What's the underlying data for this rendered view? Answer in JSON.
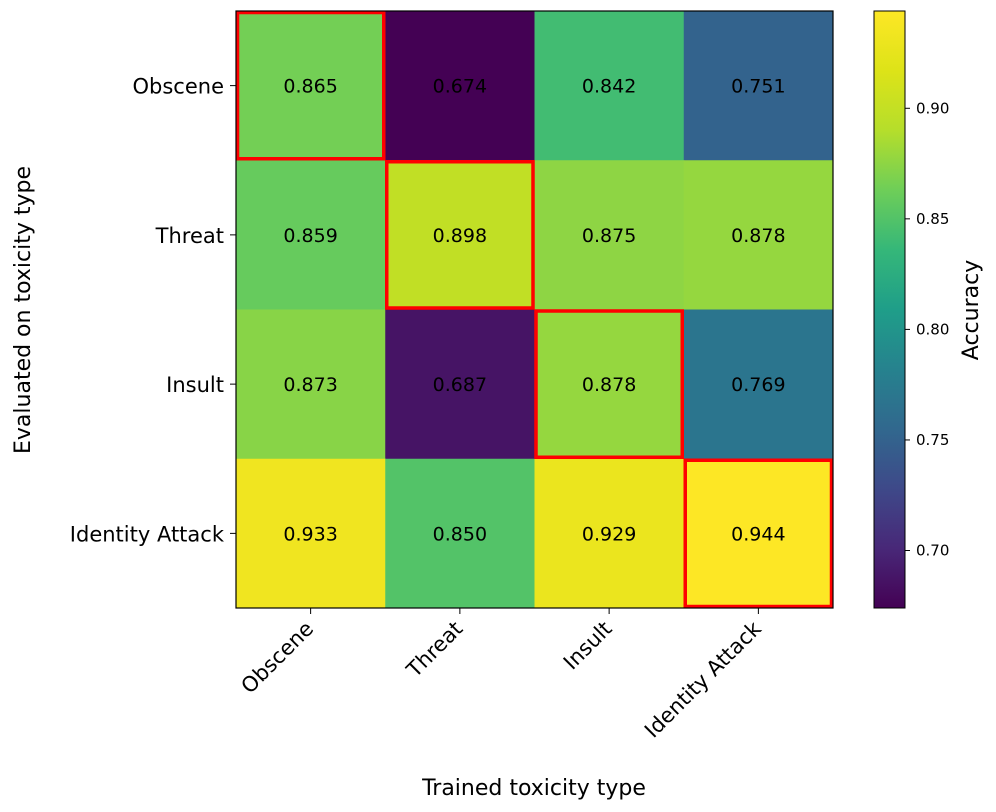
{
  "chart_data": {
    "type": "heatmap",
    "x_categories": [
      "Obscene",
      "Threat",
      "Insult",
      "Identity Attack"
    ],
    "y_categories": [
      "Obscene",
      "Threat",
      "Insult",
      "Identity Attack"
    ],
    "values": [
      [
        0.865,
        0.674,
        0.842,
        0.751
      ],
      [
        0.859,
        0.898,
        0.875,
        0.878
      ],
      [
        0.873,
        0.687,
        0.878,
        0.769
      ],
      [
        0.933,
        0.85,
        0.929,
        0.944
      ]
    ],
    "value_labels": [
      [
        "0.865",
        "0.674",
        "0.842",
        "0.751"
      ],
      [
        "0.859",
        "0.898",
        "0.875",
        "0.878"
      ],
      [
        "0.873",
        "0.687",
        "0.878",
        "0.769"
      ],
      [
        "0.933",
        "0.850",
        "0.929",
        "0.944"
      ]
    ],
    "xlabel": "Trained toxicity type",
    "ylabel": "Evaluated on toxicity type",
    "colorbar": {
      "label": "Accuracy",
      "range": [
        0.674,
        0.944
      ],
      "ticks": [
        0.7,
        0.75,
        0.8,
        0.85,
        0.9
      ],
      "tick_labels": [
        "0.70",
        "0.75",
        "0.80",
        "0.85",
        "0.90"
      ],
      "colormap": "viridis"
    },
    "highlight": "diagonal",
    "highlight_color": "#ff0000"
  }
}
